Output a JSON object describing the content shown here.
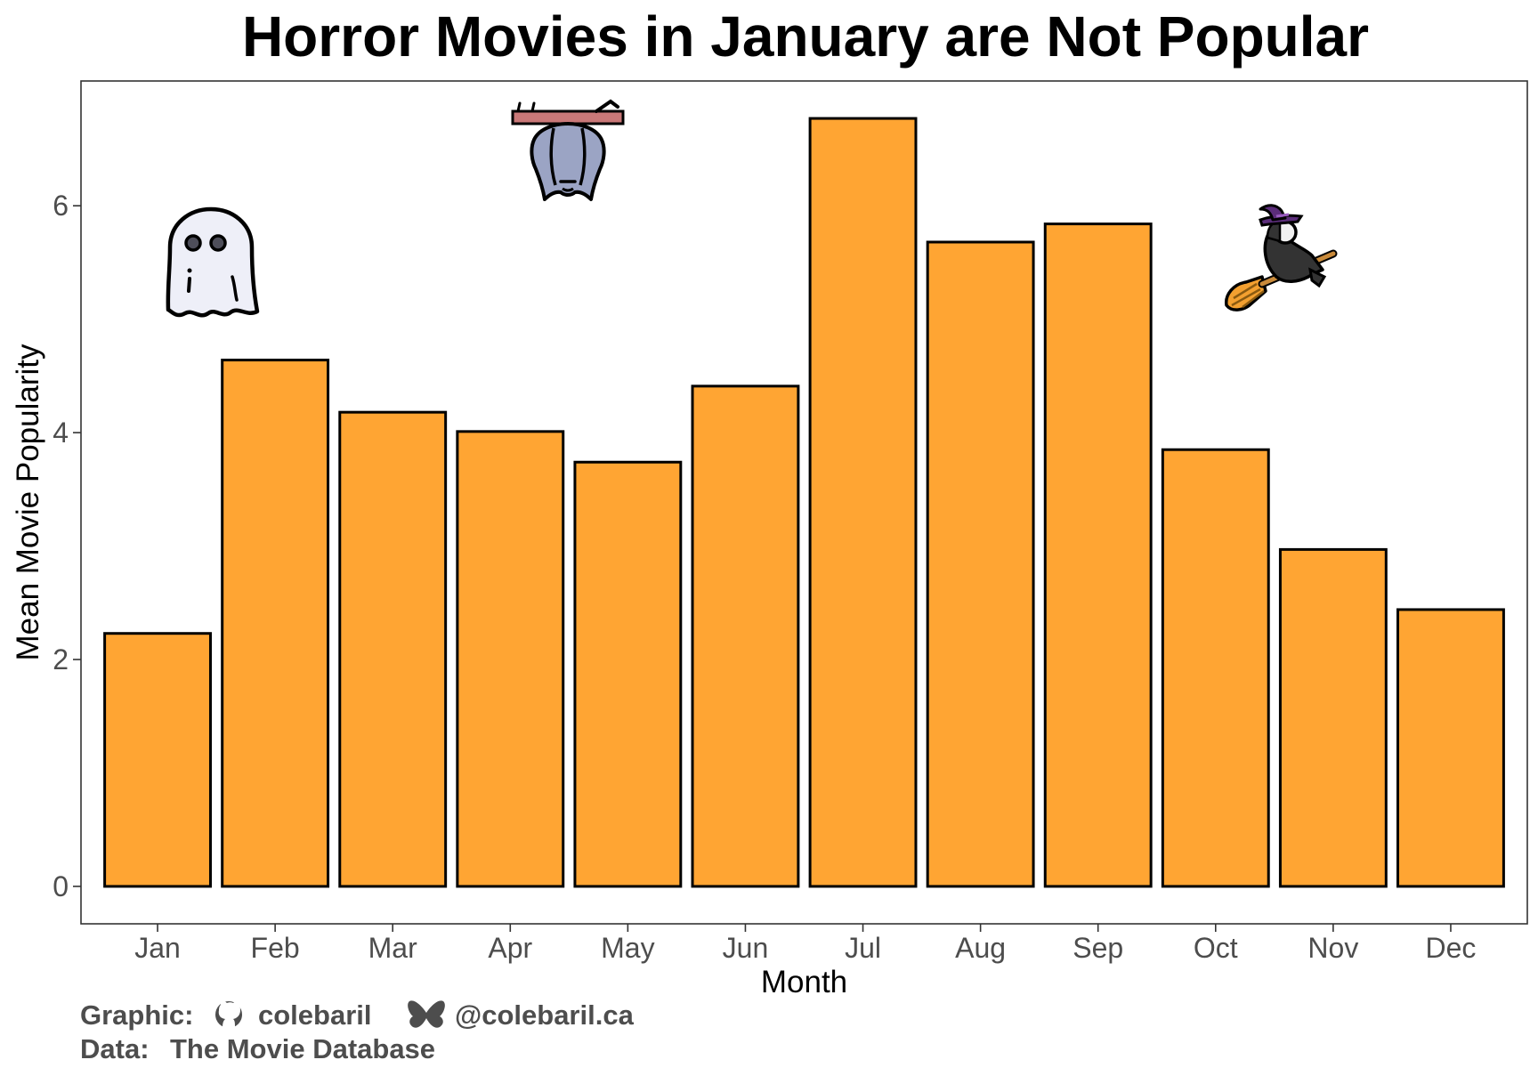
{
  "chart_data": {
    "type": "bar",
    "title": "Horror Movies in January are Not Popular",
    "xlabel": "Month",
    "ylabel": "Mean Movie Popularity",
    "categories": [
      "Jan",
      "Feb",
      "Mar",
      "Apr",
      "May",
      "Jun",
      "Jul",
      "Aug",
      "Sep",
      "Oct",
      "Nov",
      "Dec"
    ],
    "values": [
      2.23,
      4.64,
      4.18,
      4.01,
      3.74,
      4.41,
      6.77,
      5.68,
      5.84,
      3.85,
      2.97,
      2.44
    ],
    "ylim": [
      -0.33,
      7.1
    ],
    "yticks": [
      0,
      2,
      4,
      6
    ],
    "bar_color": "#ffa533",
    "bar_outline": "#000000",
    "grid": false,
    "legend": "none"
  },
  "decorations": {
    "ghost": "ghost-icon",
    "bat": "bat-icon",
    "witch": "witch-on-broom-icon"
  },
  "caption": {
    "graphic_label": "Graphic:",
    "github_icon": "github-icon",
    "github_handle": "colebaril",
    "bluesky_icon": "bluesky-butterfly-icon",
    "bluesky_handle": "@colebaril.ca",
    "data_label": "Data:",
    "data_source": "The Movie Database"
  }
}
